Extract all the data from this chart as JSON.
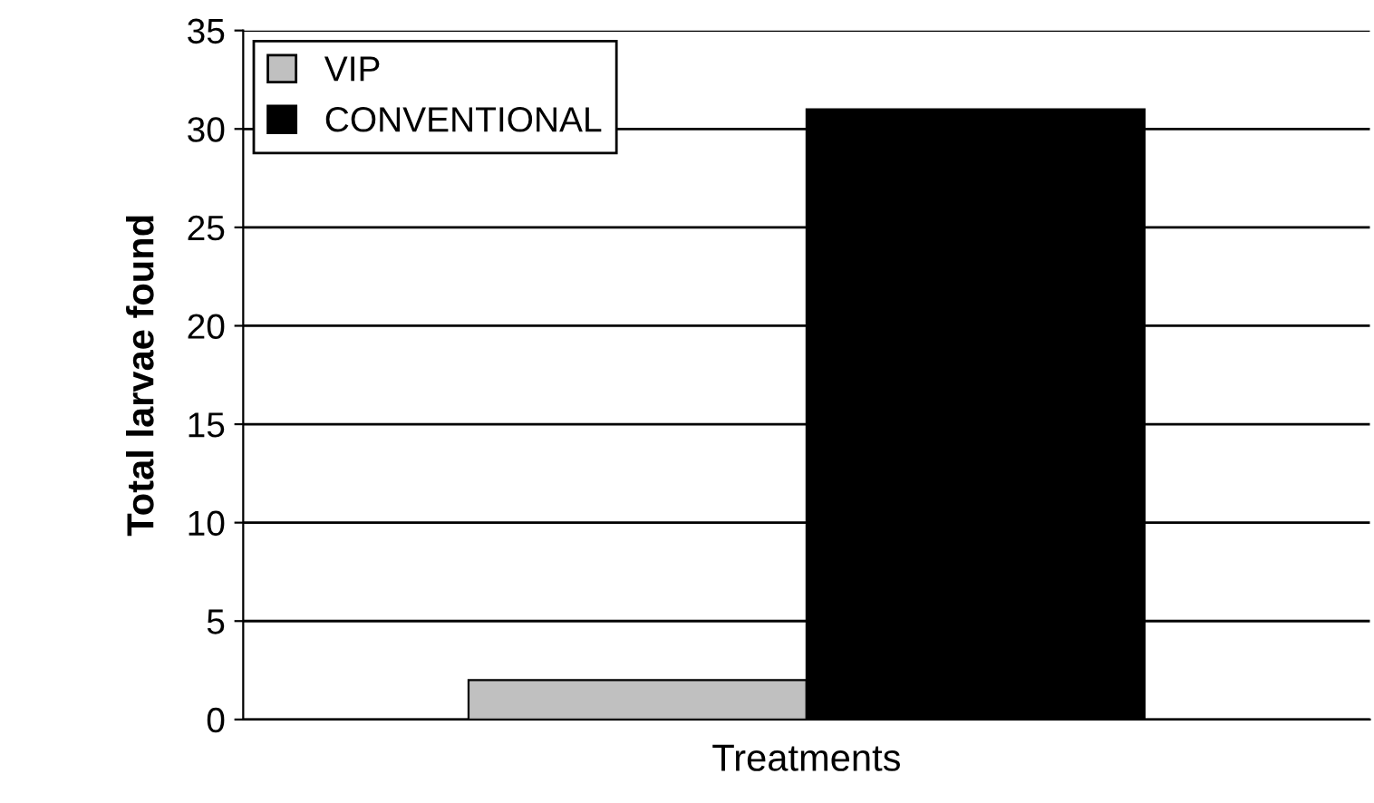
{
  "chart_data": {
    "type": "bar",
    "xlabel": "Treatments",
    "ylabel": "Total larvae found",
    "categories": [
      null
    ],
    "series": [
      {
        "name": "VIP",
        "color": "#c0c0c0",
        "values": [
          2
        ]
      },
      {
        "name": "CONVENTIONAL",
        "color": "#000000",
        "values": [
          31
        ]
      }
    ],
    "ylim": [
      0,
      35
    ],
    "yticks": [
      0,
      5,
      10,
      15,
      20,
      25,
      30,
      35
    ],
    "grid": "y",
    "legend": "top left"
  }
}
